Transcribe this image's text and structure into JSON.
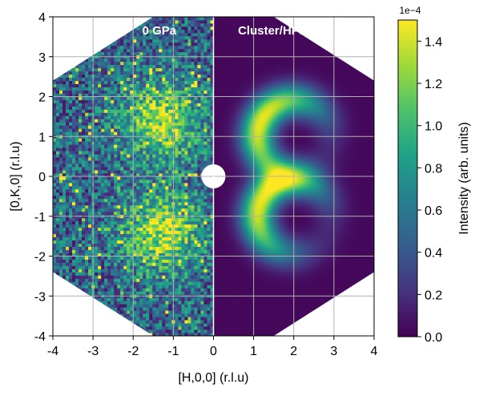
{
  "chart_data": {
    "type": "heatmap",
    "xlabel": "[H,0,0] (r.l.u)",
    "ylabel": "[0,K,0] (r.l.u)",
    "xlim": [
      -4,
      4
    ],
    "ylim": [
      -4,
      4
    ],
    "x_ticks": [
      "-4",
      "-3",
      "-2",
      "-1",
      "0",
      "1",
      "2",
      "3",
      "4"
    ],
    "y_ticks": [
      "4",
      "3",
      "2",
      "1",
      "0",
      "-1",
      "-2",
      "-3",
      "-4"
    ],
    "grid": true,
    "panels": [
      {
        "label": "0 GPa",
        "h_range": [
          -4,
          0
        ],
        "kind": "experimental data"
      },
      {
        "label": "Cluster/HPM",
        "h_range": [
          0,
          4
        ],
        "kind": "model"
      }
    ],
    "features": {
      "ring_centers": [
        [
          2,
          1
        ],
        [
          2,
          -1
        ]
      ],
      "experimental_maxima": [
        [
          -1.3,
          1.4
        ],
        [
          -1.3,
          -1.4
        ]
      ],
      "masked_center_radius": 0.3,
      "data_boundary": "octagon"
    },
    "colorbar": {
      "label": "Intensity (arb. units)",
      "exponent_label": "1e−4",
      "colormap": "viridis",
      "range": [
        0.0,
        1.5
      ],
      "ticks": [
        "0.0",
        "0.2",
        "0.4",
        "0.6",
        "0.8",
        "1.0",
        "1.2",
        "1.4"
      ]
    }
  }
}
